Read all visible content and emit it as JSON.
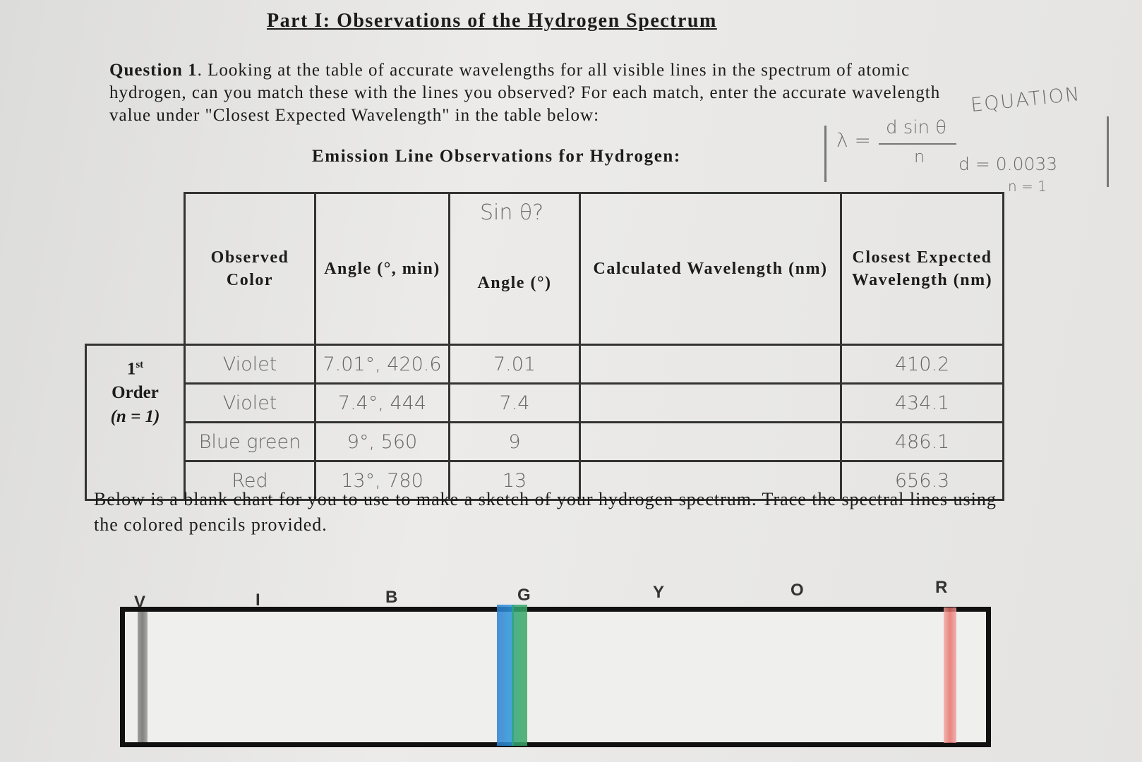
{
  "header": {
    "title": "Part I: Observations of the Hydrogen Spectrum"
  },
  "question": {
    "label": "Question 1",
    "text": ". Looking at the table of accurate wavelengths for all visible lines in the spectrum of atomic hydrogen, can you match these with the lines you observed? For each match, enter the accurate wavelength value under \"Closest Expected Wavelength\" in the table below:"
  },
  "notes": {
    "equation_label": "EQUATION",
    "lambda": "λ =",
    "numerator": "d sin θ",
    "denominator": "n",
    "d_value": "d = 0.0033",
    "n_value": "n = 1",
    "sin_question": "Sin θ?"
  },
  "table": {
    "caption": "Emission Line Observations for Hydrogen:",
    "headers": [
      "Observed Color",
      "Angle (°, min)",
      "Angle (°)",
      "Calculated Wavelength (nm)",
      "Closest Expected Wavelength (nm)"
    ],
    "order_label": {
      "ordinal": "1",
      "suffix": "st",
      "word": "Order",
      "n": "(n = 1)"
    },
    "rows": [
      {
        "color": "Violet",
        "angle_min": "7.01°, 420.6",
        "angle_deg": "7.01",
        "closest": "410.2"
      },
      {
        "color": "Violet",
        "angle_min": "7.4°, 444",
        "angle_deg": "7.4",
        "closest": "434.1"
      },
      {
        "color": "Blue green",
        "angle_min": "9°, 560",
        "angle_deg": "9",
        "closest": "486.1"
      },
      {
        "color": "Red",
        "angle_min": "13°, 780",
        "angle_deg": "13",
        "closest": "656.3"
      }
    ]
  },
  "instructions": "Below is a blank chart for you to use to make a sketch of your hydrogen spectrum. Trace the spectral lines using the colored pencils provided.",
  "spectrum": {
    "labels": [
      "V",
      "I",
      "B",
      "G",
      "Y",
      "O",
      "R"
    ]
  }
}
